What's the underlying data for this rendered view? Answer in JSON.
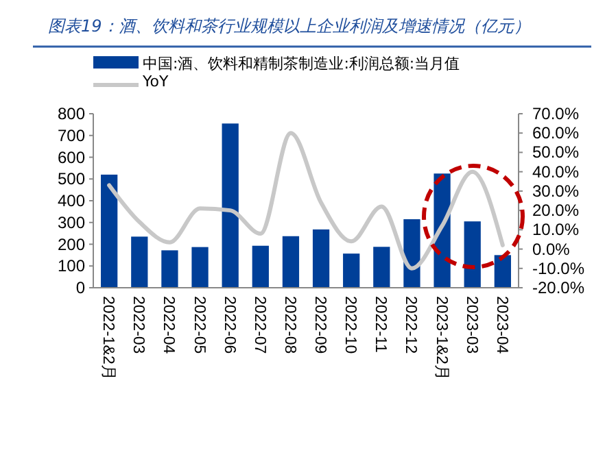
{
  "chart_data": {
    "type": "bar",
    "title": "图表19：酒、饮料和茶行业规模以上企业利润及增速情况（亿元）",
    "categories": [
      "2022-1&2月",
      "2022-03",
      "2022-04",
      "2022-05",
      "2022-06",
      "2022-07",
      "2022-08",
      "2022-09",
      "2022-10",
      "2022-11",
      "2022-12",
      "2023-1&2月",
      "2023-03",
      "2023-04"
    ],
    "series": [
      {
        "name": "中国:酒、饮料和精制茶制造业:利润总额:当月值",
        "color": "#003f98",
        "values": [
          520,
          235,
          172,
          187,
          755,
          193,
          237,
          268,
          157,
          188,
          315,
          525,
          305,
          150
        ]
      },
      {
        "name": "YoY",
        "type": "line",
        "axis": "y2",
        "color": "#c8c8c8",
        "values": [
          33,
          14,
          3.5,
          21,
          20,
          8,
          60,
          24,
          4,
          22,
          -10,
          12,
          40,
          2
        ]
      }
    ],
    "ylim": [
      0,
      800
    ],
    "yticks": [
      0,
      100,
      200,
      300,
      400,
      500,
      600,
      700,
      800
    ],
    "y2lim": [
      -20,
      70
    ],
    "y2ticks": [
      {
        "value": -20,
        "label": "-20.0%"
      },
      {
        "value": -10,
        "label": "-10.0%"
      },
      {
        "value": 0,
        "label": "0.0%"
      },
      {
        "value": 10,
        "label": "10.0%"
      },
      {
        "value": 20,
        "label": "20.0%"
      },
      {
        "value": 30,
        "label": "30.0%"
      },
      {
        "value": 40,
        "label": "40.0%"
      },
      {
        "value": 50,
        "label": "50.0%"
      },
      {
        "value": 60,
        "label": "60.0%"
      },
      {
        "value": 70,
        "label": "70.0%"
      }
    ],
    "legend": "top",
    "grid": false,
    "marker": "none"
  }
}
